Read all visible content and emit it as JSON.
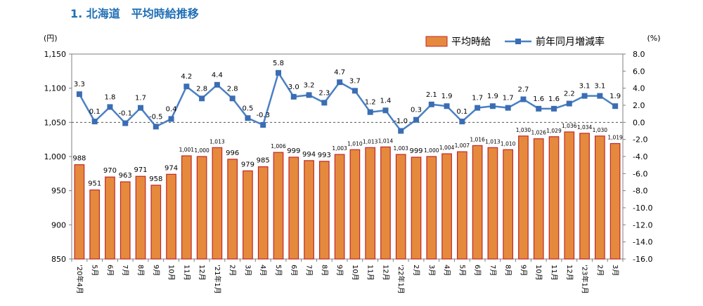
{
  "heading": "1. 北海道　平均時給推移",
  "chart_data": {
    "type": "bar+line",
    "title": "1. 北海道　平均時給推移",
    "left_unit": "(円)",
    "right_unit": "(%)",
    "y_left": {
      "min": 850,
      "max": 1150,
      "step": 50,
      "tick_labels": [
        "850",
        "900",
        "950",
        "1,000",
        "1,050",
        "1,100",
        "1,150"
      ]
    },
    "y_right": {
      "min": -16,
      "max": 8,
      "step": 2,
      "tick_labels": [
        "-16.0",
        "-14.0",
        "-12.0",
        "-10.0",
        "-8.0",
        "-6.0",
        "-4.0",
        "-2.0",
        "0.0",
        "2.0",
        "4.0",
        "6.0",
        "8.0"
      ]
    },
    "categories": [
      "'20年4月",
      "5月",
      "6月",
      "7月",
      "8月",
      "9月",
      "10月",
      "11月",
      "12月",
      "'21年1月",
      "2月",
      "3月",
      "4月",
      "5月",
      "6月",
      "7月",
      "8月",
      "9月",
      "10月",
      "11月",
      "12月",
      "'22年1月",
      "2月",
      "3月",
      "4月",
      "5月",
      "6月",
      "7月",
      "8月",
      "9月",
      "10月",
      "11月",
      "12月",
      "'23年1月",
      "2月",
      "3月"
    ],
    "series": [
      {
        "name": "平均時給",
        "type": "bar",
        "color": "#e58a3c",
        "stroke": "#c0272d",
        "values": [
          988,
          951,
          970,
          963,
          971,
          958,
          974,
          1001,
          1000,
          1013,
          996,
          979,
          985,
          1006,
          999,
          994,
          993,
          1003,
          1010,
          1013,
          1014,
          1003,
          999,
          1000,
          1004,
          1007,
          1016,
          1013,
          1010,
          1030,
          1026,
          1029,
          1036,
          1034,
          1030,
          1019
        ],
        "labels": [
          "988",
          "951",
          "970",
          "963",
          "971",
          "958",
          "974",
          "1,001",
          "1,000",
          "1,013",
          "996",
          "979",
          "985",
          "1,006",
          "999",
          "994",
          "993",
          "1,003",
          "1,010",
          "1,013",
          "1,014",
          "1,003",
          "999",
          "1,000",
          "1,004",
          "1,007",
          "1,016",
          "1,013",
          "1,010",
          "1,030",
          "1,026",
          "1,029",
          "1,036",
          "1,034",
          "1,030",
          "1,019"
        ]
      },
      {
        "name": "前年同月増減率",
        "type": "line",
        "color": "#4a80c4",
        "marker": "#3a6db3",
        "values": [
          3.3,
          0.1,
          1.8,
          -0.1,
          1.7,
          -0.5,
          0.4,
          4.2,
          2.8,
          4.4,
          2.8,
          0.5,
          -0.3,
          5.8,
          3.0,
          3.2,
          2.3,
          4.7,
          3.7,
          1.2,
          1.4,
          -1.0,
          0.3,
          2.1,
          1.9,
          0.1,
          1.7,
          1.9,
          1.7,
          2.7,
          1.6,
          1.6,
          2.2,
          3.1,
          3.1,
          1.9
        ],
        "labels": [
          "3.3",
          "0.1",
          "1.8",
          "-0.1",
          "1.7",
          "-0.5",
          "0.4",
          "4.2",
          "2.8",
          "4.4",
          "2.8",
          "0.5",
          "-0.3",
          "5.8",
          "3.0",
          "3.2",
          "2.3",
          "4.7",
          "3.7",
          "1.2",
          "1.4",
          "-1.0",
          "0.3",
          "2.1",
          "1.9",
          "0.1",
          "1.7",
          "1.9",
          "1.7",
          "2.7",
          "1.6",
          "1.6",
          "2.2",
          "3.1",
          "3.1",
          "1.9"
        ]
      }
    ],
    "reference_line": {
      "axis": "right",
      "value": 0.0,
      "style": "dashed"
    },
    "legend": [
      "平均時給",
      "前年同月増減率"
    ],
    "legend_position": "top-right"
  }
}
